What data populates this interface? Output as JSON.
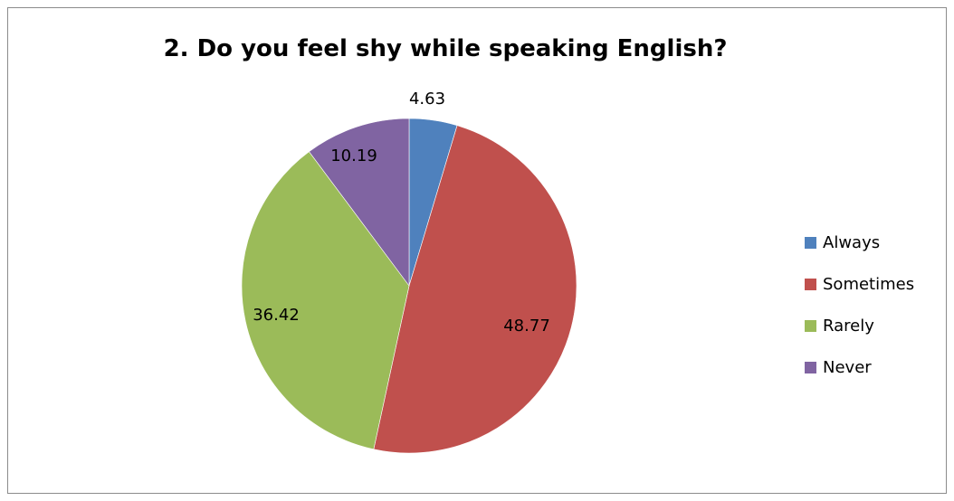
{
  "chart_data": {
    "type": "pie",
    "title": "2. Do you feel shy while speaking English?",
    "categories": [
      "Always",
      "Sometimes",
      "Rarely",
      "Never"
    ],
    "values": [
      4.63,
      48.77,
      36.42,
      10.19
    ],
    "data_labels": [
      "4.63",
      "48.77",
      "36.42",
      "10.19"
    ],
    "colors": [
      "#4f81bd",
      "#c0504d",
      "#9bbb59",
      "#8064a2"
    ],
    "legend_position": "right"
  }
}
